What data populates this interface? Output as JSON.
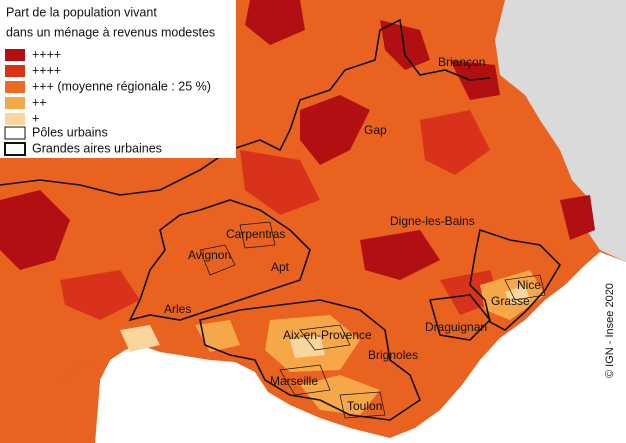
{
  "legend": {
    "title_lines": [
      "Part de la population vivant",
      "dans un ménage à revenus modestes"
    ],
    "items": [
      {
        "label": "++++",
        "color": "#b20f12"
      },
      {
        "label": "++++",
        "color": "#d8321a"
      },
      {
        "label": "+++ (moyenne régionale : 25 %)",
        "color": "#ee6a22"
      },
      {
        "label": "++",
        "color": "#f6a748"
      },
      {
        "label": "+",
        "color": "#fbd59e"
      }
    ],
    "outlines": [
      {
        "label": "Pôles urbains"
      },
      {
        "label": "Grandes aires urbaines"
      }
    ]
  },
  "places": [
    {
      "label": "Briançon"
    },
    {
      "label": "Gap"
    },
    {
      "label": "Digne-les-Bains"
    },
    {
      "label": "Carpentras"
    },
    {
      "label": "Avignon"
    },
    {
      "label": "Apt"
    },
    {
      "label": "Nice"
    },
    {
      "label": "Grasse"
    },
    {
      "label": "Arles"
    },
    {
      "label": "Draguignan"
    },
    {
      "label": "Aix-en-Provence"
    },
    {
      "label": "Brignoles"
    },
    {
      "label": "Marseille"
    },
    {
      "label": "Toulon"
    }
  ],
  "credit": "© IGN - Insee 2020"
}
